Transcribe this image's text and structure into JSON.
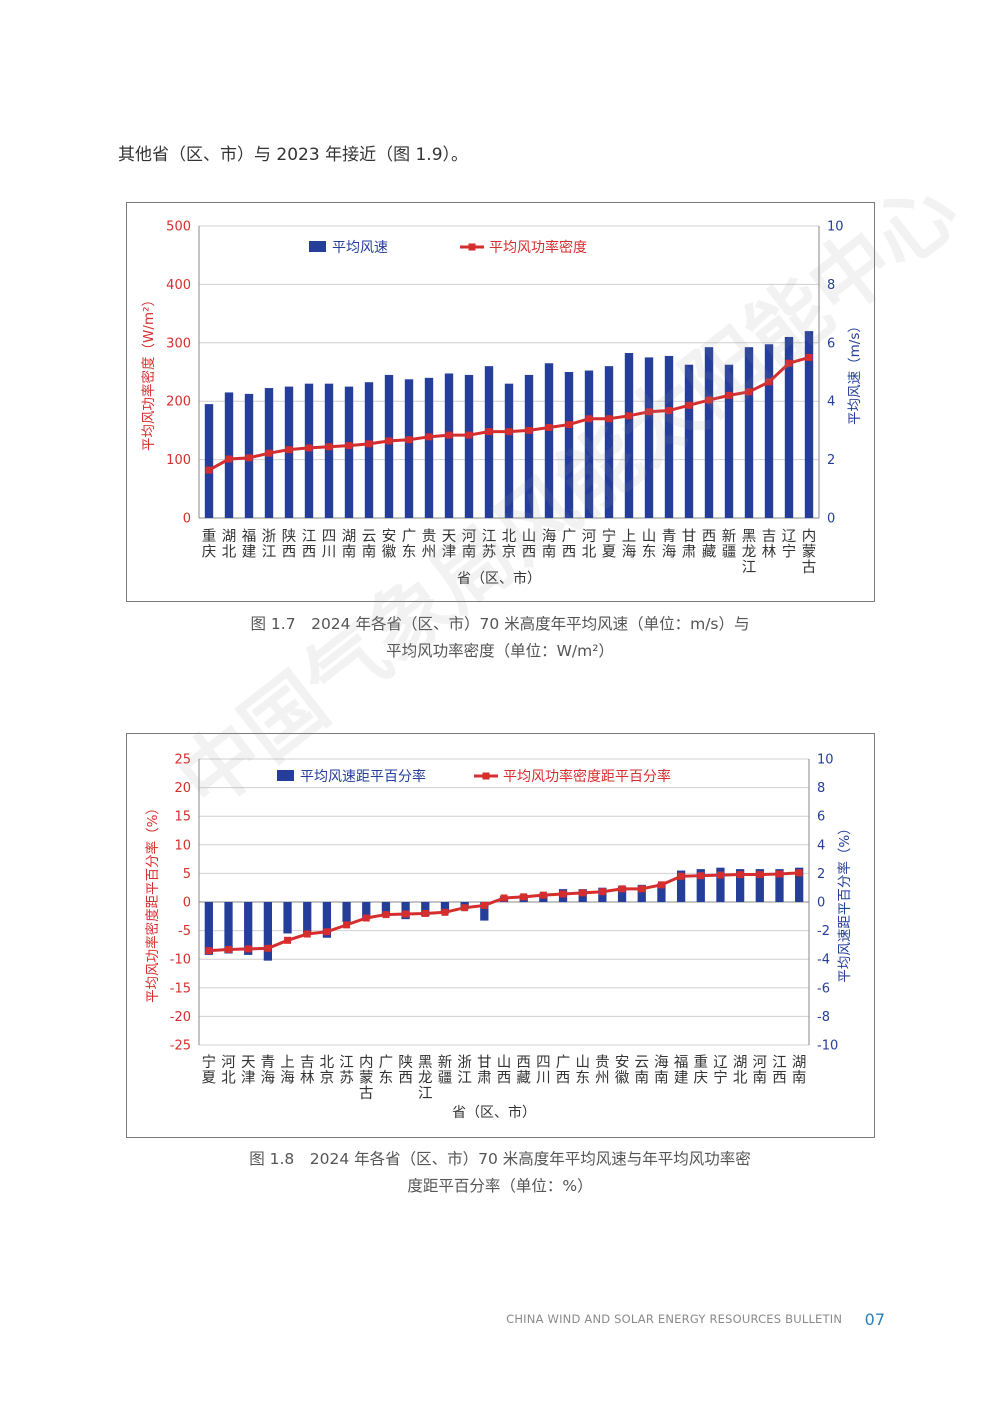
{
  "intro_text": "其他省（区、市）与 2023 年接近（图 1.9）。",
  "watermark": "中国气象局风能太阳能中心",
  "footer": {
    "text": "CHINA WIND AND SOLAR ENERGY RESOURCES BULLETIN",
    "page": "07"
  },
  "captions": {
    "fig17_line1": "图 1.7　2024 年各省（区、市）70 米高度年平均风速（单位：m/s）与",
    "fig17_line2": "平均风功率密度（单位：W/m²）",
    "fig18_line1": "图 1.8　2024 年各省（区、市）70 米高度年平均风速与年平均风功率密",
    "fig18_line2": "度距平百分率（单位：%）"
  },
  "colors": {
    "bar": "#253e9a",
    "line": "#d62e2e",
    "grid": "#d0d0d0"
  },
  "chart_data": [
    {
      "type": "bar+line",
      "categories": [
        "重庆",
        "湖北",
        "福建",
        "浙江",
        "陕西",
        "江西",
        "四川",
        "湖南",
        "云南",
        "安徽",
        "广东",
        "贵州",
        "天津",
        "河南",
        "江苏",
        "北京",
        "山西",
        "海南",
        "广西",
        "河北",
        "宁夏",
        "上海",
        "山东",
        "青海",
        "甘肃",
        "西藏",
        "新疆",
        "黑龙江",
        "吉林",
        "辽宁",
        "内蒙古"
      ],
      "series": [
        {
          "name": "平均风速",
          "kind": "bar",
          "axis": "right",
          "values": [
            3.9,
            4.3,
            4.25,
            4.45,
            4.5,
            4.6,
            4.6,
            4.5,
            4.65,
            4.9,
            4.75,
            4.8,
            4.95,
            4.9,
            5.2,
            4.6,
            4.9,
            5.3,
            5.0,
            5.05,
            5.2,
            5.65,
            5.5,
            5.55,
            5.25,
            5.85,
            5.25,
            5.85,
            5.95,
            6.2,
            6.4
          ]
        },
        {
          "name": "平均风功率密度",
          "kind": "line",
          "axis": "left",
          "values": [
            82,
            101,
            103,
            111,
            117,
            120,
            122,
            124,
            127,
            132,
            134,
            139,
            142,
            142,
            148,
            148,
            150,
            155,
            160,
            170,
            170,
            175,
            182,
            184,
            193,
            202,
            210,
            216,
            233,
            265,
            275
          ]
        }
      ],
      "xlabel": "省（区、市）",
      "ylabel_left": "平均风功率密度（W/m²）",
      "ylabel_right": "平均风速（m/s）",
      "ylim_left": [
        0,
        500
      ],
      "ylim_right": [
        0,
        10
      ],
      "yticks_left": [
        0,
        100,
        200,
        300,
        400,
        500
      ],
      "yticks_right": [
        0,
        2,
        4,
        6,
        8,
        10
      ],
      "grid": true,
      "legend": "top"
    },
    {
      "type": "bar+line",
      "categories": [
        "宁夏",
        "河北",
        "天津",
        "青海",
        "上海",
        "吉林",
        "北京",
        "江苏",
        "内蒙古",
        "广东",
        "陕西",
        "黑龙江",
        "新疆",
        "浙江",
        "甘肃",
        "山西",
        "西藏",
        "四川",
        "广西",
        "山东",
        "贵州",
        "安徽",
        "云南",
        "海南",
        "福建",
        "重庆",
        "辽宁",
        "湖北",
        "河南",
        "江西",
        "湖南"
      ],
      "series": [
        {
          "name": "平均风速距平百分率",
          "kind": "bar",
          "axis": "right",
          "values": [
            -3.7,
            -3.6,
            -3.7,
            -4.1,
            -2.2,
            -2.3,
            -2.5,
            -1.4,
            -1.2,
            -1.0,
            -1.2,
            -1.0,
            -0.8,
            -0.5,
            -1.3,
            0.4,
            0.5,
            0.6,
            0.9,
            0.9,
            1.0,
            1.1,
            1.2,
            1.3,
            2.2,
            2.3,
            2.4,
            2.3,
            2.3,
            2.3,
            2.4
          ]
        },
        {
          "name": "平均风功率密度距平百分率",
          "kind": "line",
          "axis": "left",
          "values": [
            -8.5,
            -8.3,
            -8.2,
            -8.1,
            -6.7,
            -5.6,
            -5.2,
            -4.0,
            -2.8,
            -2.2,
            -2.1,
            -2.0,
            -1.8,
            -1.0,
            -0.6,
            0.7,
            0.9,
            1.2,
            1.4,
            1.6,
            1.8,
            2.3,
            2.3,
            3.0,
            4.5,
            4.6,
            4.7,
            4.8,
            4.8,
            4.9,
            5.1
          ]
        }
      ],
      "xlabel": "省（区、市）",
      "ylabel_left": "平均风功率密度距平百分率（%）",
      "ylabel_right": "平均风速距平百分率（%）",
      "ylim_left": [
        -25,
        25
      ],
      "ylim_right": [
        -10,
        10
      ],
      "yticks_left": [
        -25,
        -20,
        -15,
        -10,
        -5,
        0,
        5,
        10,
        15,
        20,
        25
      ],
      "yticks_right": [
        -10,
        -8,
        -6,
        -4,
        -2,
        0,
        2,
        4,
        6,
        8,
        10
      ],
      "grid": true,
      "legend": "top"
    }
  ]
}
